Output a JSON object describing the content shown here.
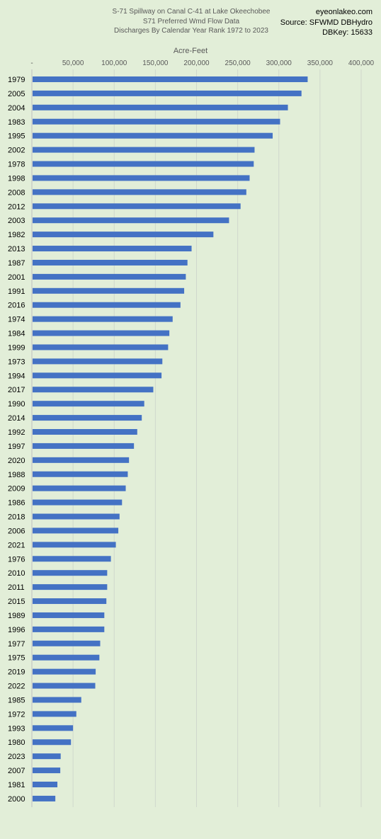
{
  "chart_data": {
    "type": "bar",
    "orientation": "horizontal",
    "title": [
      "S-71 Spillway on Canal C-41 at Lake Okeechobee",
      "S71 Preferred Wmd Flow Data",
      "Discharges By Calendar Year Rank 1972 to 2023"
    ],
    "source": [
      "eyeonlakeo.com",
      "Source: SFWMD DBHydro",
      "DBKey: 15633"
    ],
    "xlabel": "Acre-Feet",
    "xlim": [
      0,
      400000
    ],
    "x_ticks": [
      0,
      50000,
      100000,
      150000,
      200000,
      250000,
      300000,
      350000,
      400000
    ],
    "x_tick_labels": [
      "-",
      "50,000",
      "100,000",
      "150,000",
      "200,000",
      "250,000",
      "300,000",
      "350,000",
      "400,000"
    ],
    "x_axis_position": "top",
    "grid": true,
    "bar_color": "#4472c4",
    "categories": [
      "1979",
      "2005",
      "2004",
      "1983",
      "1995",
      "2002",
      "1978",
      "1998",
      "2008",
      "2012",
      "2003",
      "1982",
      "2013",
      "1987",
      "2001",
      "1991",
      "2016",
      "1974",
      "1984",
      "1999",
      "1973",
      "1994",
      "2017",
      "1990",
      "2014",
      "1992",
      "1997",
      "2020",
      "1988",
      "2009",
      "1986",
      "2018",
      "2006",
      "2021",
      "1976",
      "2010",
      "2011",
      "2015",
      "1989",
      "1996",
      "1977",
      "1975",
      "2019",
      "2022",
      "1985",
      "1972",
      "1993",
      "1980",
      "2023",
      "2007",
      "1981",
      "2000"
    ],
    "values": [
      335000,
      327500,
      311000,
      301500,
      292500,
      270500,
      269500,
      264500,
      260500,
      253500,
      239500,
      220500,
      194000,
      189000,
      187000,
      185000,
      180500,
      171000,
      167000,
      165500,
      158500,
      157500,
      147500,
      136500,
      133500,
      128000,
      124000,
      118000,
      116500,
      114000,
      109500,
      106500,
      105000,
      102000,
      96000,
      91500,
      91500,
      90500,
      88000,
      88000,
      83000,
      82000,
      77500,
      77000,
      60000,
      54000,
      50000,
      47500,
      35000,
      34500,
      31000,
      28500
    ]
  }
}
